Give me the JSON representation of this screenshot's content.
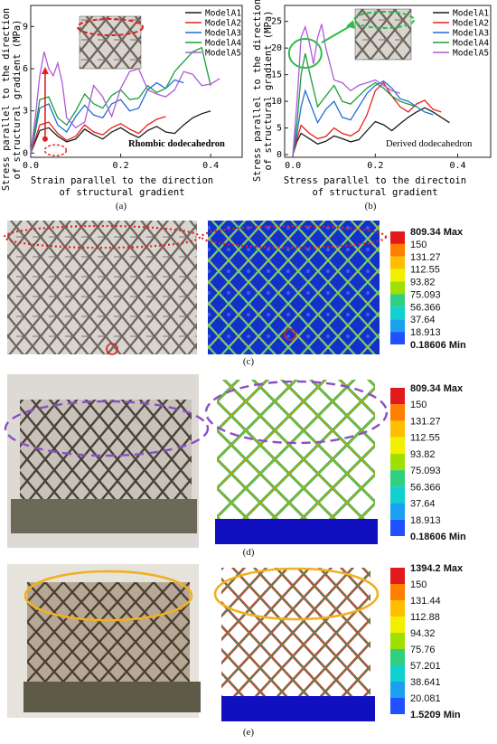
{
  "figure": {
    "panels": {
      "a": {
        "caption": "(a)"
      },
      "b": {
        "caption": "(b)"
      },
      "c": {
        "caption": "(c)"
      },
      "d": {
        "caption": "(d)"
      },
      "e": {
        "caption": "(e)"
      }
    }
  },
  "chart_data": [
    {
      "type": "line",
      "panel": "a",
      "xlabel": "Strain parallel to the direction of structural gradient",
      "ylabel": "Stress parallel to the direction of structural gradient (MPa)",
      "xlabel_lines": [
        "Strain parallel to the direction",
        "of structural gradient"
      ],
      "ylabel_lines": [
        "Stress parallel to the direction",
        "of structural gradient (MPa)"
      ],
      "annotation": "Rhombic dodecahedron",
      "xlim": [
        0,
        0.47
      ],
      "ylim": [
        -0.3,
        10.5
      ],
      "xticks": [
        0.0,
        0.2,
        0.4
      ],
      "xtick_labels": [
        "0.0",
        "0.2",
        "0.4"
      ],
      "yticks": [
        0,
        3,
        6,
        9
      ],
      "ytick_labels": [
        "0",
        "3",
        "6",
        "9"
      ],
      "legend_position": "top-right",
      "series": [
        {
          "name": "ModelA1",
          "color": "#1a1a1a",
          "x": [
            0,
            0.01,
            0.02,
            0.04,
            0.06,
            0.08,
            0.1,
            0.12,
            0.14,
            0.16,
            0.18,
            0.2,
            0.22,
            0.24,
            0.26,
            0.28,
            0.3,
            0.32,
            0.34,
            0.36,
            0.38,
            0.4
          ],
          "y": [
            0,
            0.8,
            1.6,
            1.8,
            1.2,
            0.8,
            1.0,
            1.7,
            1.3,
            1.0,
            1.5,
            1.8,
            1.4,
            1.1,
            1.6,
            1.9,
            1.5,
            1.4,
            2.0,
            2.5,
            2.8,
            3.0
          ]
        },
        {
          "name": "ModelA2",
          "color": "#e8201c",
          "x": [
            0,
            0.01,
            0.02,
            0.04,
            0.06,
            0.08,
            0.1,
            0.12,
            0.14,
            0.16,
            0.18,
            0.2,
            0.22,
            0.24,
            0.26,
            0.28,
            0.3
          ],
          "y": [
            0,
            1.0,
            2.0,
            2.2,
            1.4,
            0.9,
            1.2,
            2.0,
            1.5,
            1.3,
            1.8,
            2.1,
            1.7,
            1.4,
            2.0,
            2.4,
            2.6
          ]
        },
        {
          "name": "ModelA3",
          "color": "#1f6fd6",
          "x": [
            0,
            0.01,
            0.02,
            0.04,
            0.06,
            0.08,
            0.1,
            0.12,
            0.14,
            0.16,
            0.18,
            0.2,
            0.22,
            0.24,
            0.26,
            0.28,
            0.3,
            0.32,
            0.34
          ],
          "y": [
            0,
            1.5,
            3.2,
            3.5,
            2.0,
            1.5,
            2.6,
            3.4,
            2.7,
            2.5,
            3.5,
            3.8,
            3.0,
            3.2,
            4.5,
            5.0,
            4.6,
            5.2,
            5.0
          ]
        },
        {
          "name": "ModelA4",
          "color": "#1a9e3a",
          "x": [
            0,
            0.01,
            0.02,
            0.04,
            0.06,
            0.08,
            0.1,
            0.12,
            0.14,
            0.16,
            0.18,
            0.2,
            0.22,
            0.24,
            0.26,
            0.28,
            0.3,
            0.32,
            0.34,
            0.36,
            0.38,
            0.4
          ],
          "y": [
            0,
            1.8,
            3.8,
            4.0,
            2.5,
            2.0,
            3.0,
            4.2,
            3.5,
            3.2,
            4.1,
            4.5,
            3.8,
            3.9,
            4.8,
            4.3,
            4.6,
            5.8,
            6.5,
            7.2,
            7.5,
            4.8
          ]
        },
        {
          "name": "ModelA5",
          "color": "#b05ad8",
          "x": [
            0,
            0.01,
            0.02,
            0.03,
            0.04,
            0.05,
            0.06,
            0.07,
            0.08,
            0.1,
            0.12,
            0.14,
            0.16,
            0.18,
            0.2,
            0.22,
            0.24,
            0.26,
            0.28,
            0.3,
            0.32,
            0.34,
            0.36,
            0.38,
            0.4,
            0.42
          ],
          "y": [
            0,
            2.5,
            5.5,
            7.2,
            6.0,
            5.5,
            6.4,
            5.0,
            2.5,
            1.8,
            2.2,
            4.8,
            4.0,
            2.6,
            4.6,
            5.8,
            6.0,
            4.5,
            4.2,
            4.0,
            4.5,
            5.8,
            5.6,
            4.8,
            4.9,
            5.3
          ]
        }
      ]
    },
    {
      "type": "line",
      "panel": "b",
      "xlabel": "Stress parallel to the directoin of structural gradient",
      "ylabel": "Stress parallel to the direction of structural gradient (MPa)",
      "xlabel_lines": [
        "Stress parallel to the directoin",
        "of structural gradient"
      ],
      "ylabel_lines": [
        "Stress parallel to the direction",
        "of structural gradient (MPa)"
      ],
      "annotation": "Derived dodecahedron",
      "xlim": [
        -0.02,
        0.48
      ],
      "ylim": [
        -0.5,
        28
      ],
      "xticks": [
        0.0,
        0.2,
        0.4
      ],
      "xtick_labels": [
        "0.0",
        "0.2",
        "0.4"
      ],
      "yticks": [
        0,
        5,
        10,
        15,
        20,
        25
      ],
      "ytick_labels": [
        "0",
        "5",
        "10",
        "15",
        "20",
        "25"
      ],
      "legend_position": "top-right",
      "series": [
        {
          "name": "ModelA1",
          "color": "#1a1a1a",
          "x": [
            0,
            0.01,
            0.02,
            0.04,
            0.06,
            0.08,
            0.1,
            0.12,
            0.14,
            0.16,
            0.18,
            0.2,
            0.22,
            0.24,
            0.26,
            0.28,
            0.3,
            0.32,
            0.34,
            0.36,
            0.38
          ],
          "y": [
            0,
            2.5,
            4.0,
            3.0,
            2.0,
            2.5,
            3.5,
            3.0,
            2.4,
            2.8,
            4.5,
            6.2,
            5.6,
            4.5,
            5.8,
            7.0,
            8.0,
            8.8,
            8.0,
            7.0,
            6.0
          ]
        },
        {
          "name": "ModelA2",
          "color": "#e8201c",
          "x": [
            0,
            0.01,
            0.02,
            0.04,
            0.06,
            0.08,
            0.1,
            0.12,
            0.14,
            0.16,
            0.18,
            0.2,
            0.22,
            0.24,
            0.26,
            0.28,
            0.3,
            0.32,
            0.34,
            0.36
          ],
          "y": [
            0,
            3.0,
            5.5,
            4.0,
            3.0,
            3.4,
            5.0,
            4.0,
            3.5,
            4.5,
            7.5,
            12.0,
            13.5,
            11.0,
            9.0,
            8.0,
            9.5,
            10.2,
            8.5,
            8.0
          ]
        },
        {
          "name": "ModelA3",
          "color": "#1f6fd6",
          "x": [
            0,
            0.01,
            0.02,
            0.03,
            0.04,
            0.06,
            0.08,
            0.1,
            0.12,
            0.14,
            0.16,
            0.18,
            0.2,
            0.22,
            0.24,
            0.26,
            0.28,
            0.3,
            0.32,
            0.34
          ],
          "y": [
            0,
            4.0,
            9.0,
            12.0,
            10.0,
            6.0,
            8.5,
            10.0,
            7.0,
            6.5,
            9.0,
            11.5,
            13.0,
            13.8,
            12.5,
            10.5,
            10.0,
            9.0,
            8.0,
            7.5
          ]
        },
        {
          "name": "ModelA4",
          "color": "#1a9e3a",
          "x": [
            0,
            0.01,
            0.02,
            0.03,
            0.04,
            0.06,
            0.08,
            0.1,
            0.12,
            0.14,
            0.16,
            0.18,
            0.2,
            0.22,
            0.24,
            0.26,
            0.28,
            0.3
          ],
          "y": [
            0,
            6.0,
            15.0,
            19.0,
            15.5,
            9.0,
            11.0,
            13.0,
            10.0,
            9.5,
            11.0,
            12.5,
            13.5,
            12.5,
            11.0,
            10.0,
            9.5,
            9.0
          ]
        },
        {
          "name": "ModelA5",
          "color": "#b05ad8",
          "x": [
            0,
            0.01,
            0.02,
            0.03,
            0.04,
            0.05,
            0.06,
            0.07,
            0.08,
            0.09,
            0.1,
            0.12,
            0.14,
            0.16,
            0.18,
            0.2,
            0.22,
            0.24,
            0.26
          ],
          "y": [
            0,
            10.0,
            22.0,
            24.0,
            21.0,
            17.0,
            22.0,
            24.5,
            20.0,
            17.0,
            14.0,
            13.5,
            12.0,
            13.0,
            13.5,
            14.0,
            13.0,
            12.0,
            11.5
          ]
        }
      ]
    }
  ],
  "contour_legends": {
    "c": {
      "values": [
        "809.34 Max",
        "150",
        "131.27",
        "112.55",
        "93.82",
        "75.093",
        "56.366",
        "37.64",
        "18.913",
        "0.18606 Min"
      ]
    },
    "d": {
      "values": [
        "809.34 Max",
        "150",
        "131.27",
        "112.55",
        "93.82",
        "75.093",
        "56.366",
        "37.64",
        "18.913",
        "0.18606 Min"
      ]
    },
    "e": {
      "values": [
        "1394.2 Max",
        "150",
        "131.44",
        "112.88",
        "94.32",
        "75.76",
        "57.201",
        "38.641",
        "20.081",
        "1.5209 Min"
      ]
    }
  },
  "colors": {
    "contour_scale": [
      "#e31a1c",
      "#ff7f00",
      "#ffbf00",
      "#f0f000",
      "#9fe000",
      "#2fd080",
      "#10d0d0",
      "#1aa0f0",
      "#2050ff",
      "#1010c0"
    ],
    "dash_red": "#e02020",
    "dash_green": "#2ebd4a",
    "dash_purple": "#8a4fc4",
    "ellipse_orange": "#f0b020"
  }
}
